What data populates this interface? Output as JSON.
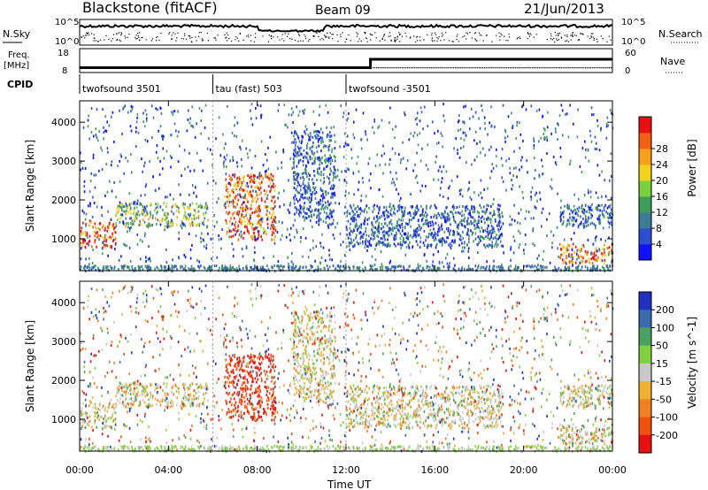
{
  "header": {
    "station": "Blackstone (fitACF)",
    "beam": "Beam 09",
    "date": "21/Jun/2013"
  },
  "noise_panel": {
    "left_label": "N.Sky",
    "right_label": "N.Search",
    "y_ticks_left": [
      "10^5",
      "10^0"
    ],
    "y_ticks_right": [
      "10^5",
      "10^0"
    ]
  },
  "freq_panel": {
    "left_label_line1": "Freq.",
    "left_label_line2": "[MHz]",
    "right_label": "Nave",
    "y_ticks_left": [
      "18",
      "8"
    ],
    "y_ticks_right": [
      "60",
      "0"
    ],
    "freq_profile": [
      {
        "t": 0,
        "v": 10.5
      },
      {
        "t": 13.1,
        "v": 10.5
      },
      {
        "t": 13.1,
        "v": 14.8
      },
      {
        "t": 24,
        "v": 14.8
      }
    ]
  },
  "cpid_panel": {
    "label": "CPID",
    "segments": [
      {
        "start": 0,
        "end": 6,
        "text": "twofsound 3501"
      },
      {
        "start": 6,
        "end": 12,
        "text": "tau (fast) 503"
      },
      {
        "start": 12,
        "end": 24,
        "text": "twofsound -3501"
      }
    ]
  },
  "chart_data": [
    {
      "type": "heatmap",
      "title": "",
      "ylabel": "Slant Range [km]",
      "xlabel": "",
      "ylim": [
        180,
        4550
      ],
      "xlim": [
        0,
        24
      ],
      "y_ticks": [
        1000,
        2000,
        3000,
        4000
      ],
      "colorbar": {
        "label": "Power [dB]",
        "ticks": [
          "4",
          "8",
          "12",
          "16",
          "20",
          "24",
          "28"
        ],
        "colors": [
          "#1010ff",
          "#2b4fd0",
          "#3e7b95",
          "#3f9c5a",
          "#7ad03c",
          "#f2d21a",
          "#f7a11a",
          "#f26014",
          "#e81010"
        ]
      },
      "echo_regions": [
        {
          "t0": 0.0,
          "t1": 1.6,
          "r0": 800,
          "r1": 1500,
          "level": "high"
        },
        {
          "t0": 1.6,
          "t1": 5.8,
          "r0": 1350,
          "r1": 1950,
          "level": "medium"
        },
        {
          "t0": 6.5,
          "t1": 8.8,
          "r0": 1000,
          "r1": 2700,
          "level": "high"
        },
        {
          "t0": 9.6,
          "t1": 11.5,
          "r0": 1500,
          "r1": 3800,
          "level": "low"
        },
        {
          "t0": 12.0,
          "t1": 19.0,
          "r0": 800,
          "r1": 1900,
          "level": "low"
        },
        {
          "t0": 21.6,
          "t1": 24.0,
          "r0": 400,
          "r1": 900,
          "level": "high"
        },
        {
          "t0": 21.6,
          "t1": 24.0,
          "r0": 1300,
          "r1": 1900,
          "level": "low"
        }
      ]
    },
    {
      "type": "heatmap",
      "title": "",
      "ylabel": "Slant Range [km]",
      "xlabel": "Time UT",
      "ylim": [
        180,
        4550
      ],
      "xlim": [
        0,
        24
      ],
      "y_ticks": [
        1000,
        2000,
        3000,
        4000
      ],
      "x_ticks": [
        "00:00",
        "04:00",
        "08:00",
        "12:00",
        "16:00",
        "20:00",
        "00:00"
      ],
      "colorbar": {
        "label": "Velocity [m s^-1]",
        "ticks": [
          "200",
          "100",
          "50",
          "15",
          "-15",
          "-50",
          "-100",
          "-200"
        ],
        "colors": [
          "#2030c0",
          "#3a6ab0",
          "#4aa060",
          "#80d040",
          "#c8c8c8",
          "#f0b030",
          "#f08020",
          "#f05010",
          "#e81010"
        ]
      }
    }
  ]
}
